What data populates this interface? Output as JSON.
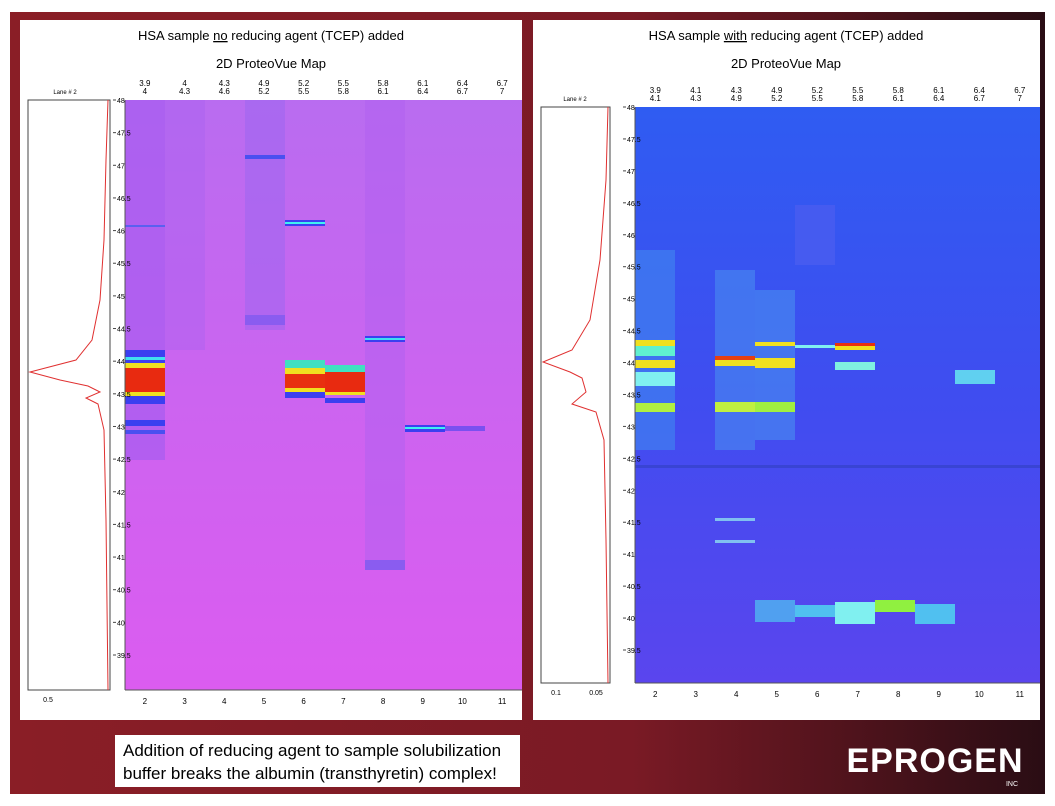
{
  "left_panel": {
    "title": {
      "before": "HSA sample",
      "emphasis": "no",
      "after": "reducing agent (TCEP) added"
    },
    "subtitle": "2D ProteoVue Map",
    "lane_label": "Lane # 2",
    "pi_ranges": [
      [
        "3.9",
        "4"
      ],
      [
        "4",
        "4.3"
      ],
      [
        "4.3",
        "4.6"
      ],
      [
        "4.9",
        "5.2"
      ],
      [
        "5.2",
        "5.5"
      ],
      [
        "5.5",
        "5.8"
      ],
      [
        "5.8",
        "6.1"
      ],
      [
        "6.1",
        "6.4"
      ],
      [
        "6.4",
        "6.7"
      ],
      [
        "6.7",
        "7"
      ]
    ],
    "lanes": [
      "2",
      "3",
      "4",
      "5",
      "6",
      "7",
      "8",
      "9",
      "10",
      "11"
    ],
    "y_ticks": [
      "48",
      "47.5",
      "47",
      "46.5",
      "46",
      "45.5",
      "45",
      "44.5",
      "44",
      "43.5",
      "43",
      "42.5",
      "42",
      "41.5",
      "41",
      "40.5",
      "40",
      "39.5"
    ],
    "trace_ticks": [
      "0.5"
    ]
  },
  "right_panel": {
    "title": {
      "before": "HSA sample",
      "emphasis": "with",
      "after": "reducing agent (TCEP) added"
    },
    "subtitle": "2D ProteoVue Map",
    "lane_label": "Lane # 2",
    "pi_ranges": [
      [
        "3.9",
        "4.1"
      ],
      [
        "4.1",
        "4.3"
      ],
      [
        "4.3",
        "4.9"
      ],
      [
        "4.9",
        "5.2"
      ],
      [
        "5.2",
        "5.5"
      ],
      [
        "5.5",
        "5.8"
      ],
      [
        "5.8",
        "6.1"
      ],
      [
        "6.1",
        "6.4"
      ],
      [
        "6.4",
        "6.7"
      ],
      [
        "6.7",
        "7"
      ]
    ],
    "lanes": [
      "2",
      "3",
      "4",
      "5",
      "6",
      "7",
      "8",
      "9",
      "10",
      "11"
    ],
    "y_ticks": [
      "48",
      "47.5",
      "47",
      "46.5",
      "46",
      "45.5",
      "45",
      "44.5",
      "44",
      "43.5",
      "43",
      "42.5",
      "42",
      "41.5",
      "41",
      "40.5",
      "40",
      "39.5"
    ],
    "trace_ticks": [
      "0.1",
      "0.05"
    ]
  },
  "caption": [
    "Addition of reducing agent to sample solubilization",
    "buffer breaks the albumin (transthyretin) complex!"
  ],
  "logo": {
    "name": "EPROGEN",
    "suffix": "INC"
  }
}
